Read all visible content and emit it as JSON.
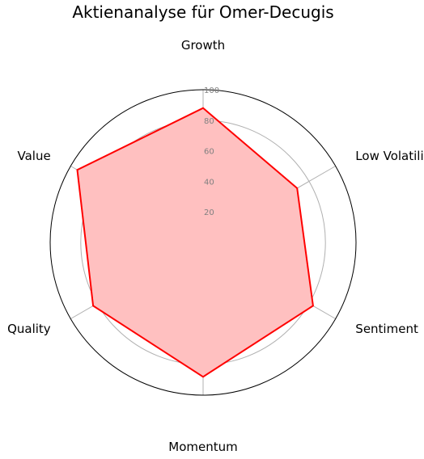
{
  "chart_data": {
    "type": "radar",
    "title": "Aktienanalyse für Omer-Decugis",
    "categories": [
      "Growth",
      "Low Volatility",
      "Sentiment",
      "Momentum",
      "Quality",
      "Value"
    ],
    "series": [
      {
        "values": [
          88,
          71,
          83,
          88,
          83,
          95
        ]
      }
    ],
    "rlim": [
      0,
      100
    ],
    "r_ticks": [
      20,
      40,
      60,
      80,
      100
    ],
    "r_tick_labels": [
      "20",
      "40",
      "60",
      "80",
      "100"
    ],
    "grid": true,
    "colors": {
      "line": "#ff0000",
      "fill": "#ffc0c0",
      "grid": "#b0b0b0",
      "frame": "#000000",
      "tick_label": "#808080"
    }
  }
}
